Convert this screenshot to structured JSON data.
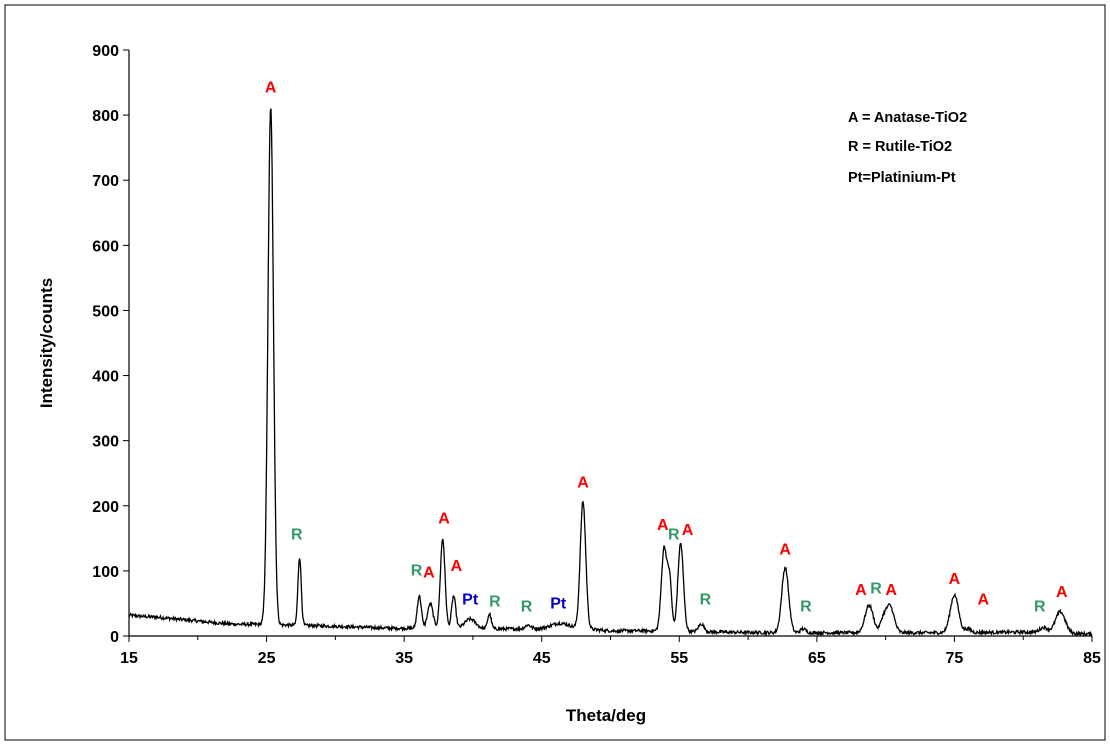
{
  "chart_data": {
    "type": "line",
    "xlabel": "Theta/deg",
    "ylabel": "Intensity/counts",
    "xlim": [
      15,
      85
    ],
    "ylim": [
      0,
      900
    ],
    "xticks": [
      15,
      25,
      35,
      45,
      55,
      65,
      75,
      85
    ],
    "yticks": [
      0,
      100,
      200,
      300,
      400,
      500,
      600,
      700,
      800,
      900
    ],
    "grid": false,
    "legend": [
      "A = Anatase-TiO2",
      "R = Rutile-TiO2",
      "Pt=Platinium-Pt"
    ],
    "legend_position": "top-right",
    "colors": {
      "A": "#ff0000",
      "R": "#339966",
      "Pt": "#0000cc",
      "line": "#000000"
    },
    "baseline": [
      [
        15,
        32
      ],
      [
        16,
        30
      ],
      [
        17,
        29
      ],
      [
        18,
        27
      ],
      [
        19,
        25
      ],
      [
        20,
        23
      ],
      [
        21,
        21
      ],
      [
        22,
        19
      ],
      [
        23,
        18
      ],
      [
        24,
        18
      ],
      [
        30,
        15
      ],
      [
        34,
        12
      ],
      [
        40,
        11
      ],
      [
        44,
        11
      ],
      [
        47,
        13
      ],
      [
        50,
        8
      ],
      [
        53,
        8
      ],
      [
        58,
        6
      ],
      [
        62,
        5
      ],
      [
        66,
        5
      ],
      [
        70,
        5
      ],
      [
        75,
        5
      ],
      [
        80,
        6
      ],
      [
        85,
        3
      ]
    ],
    "peaks": [
      {
        "center": 25.3,
        "height": 795,
        "width": 0.2
      },
      {
        "center": 27.4,
        "height": 105,
        "width": 0.12
      },
      {
        "center": 36.1,
        "height": 50,
        "width": 0.15
      },
      {
        "center": 36.9,
        "height": 38,
        "width": 0.2
      },
      {
        "center": 37.8,
        "height": 138,
        "width": 0.17
      },
      {
        "center": 38.6,
        "height": 50,
        "width": 0.15
      },
      {
        "center": 39.8,
        "height": 15,
        "width": 0.4
      },
      {
        "center": 41.2,
        "height": 23,
        "width": 0.13
      },
      {
        "center": 44.0,
        "height": 6,
        "width": 0.2
      },
      {
        "center": 46.3,
        "height": 7,
        "width": 0.6
      },
      {
        "center": 48.0,
        "height": 195,
        "width": 0.2
      },
      {
        "center": 53.9,
        "height": 128,
        "width": 0.2
      },
      {
        "center": 54.3,
        "height": 75,
        "width": 0.15
      },
      {
        "center": 55.1,
        "height": 135,
        "width": 0.2
      },
      {
        "center": 56.6,
        "height": 12,
        "width": 0.2
      },
      {
        "center": 62.7,
        "height": 100,
        "width": 0.25
      },
      {
        "center": 64.0,
        "height": 6,
        "width": 0.2
      },
      {
        "center": 68.8,
        "height": 42,
        "width": 0.3
      },
      {
        "center": 69.8,
        "height": 16,
        "width": 0.2
      },
      {
        "center": 70.3,
        "height": 42,
        "width": 0.3
      },
      {
        "center": 75.0,
        "height": 58,
        "width": 0.3
      },
      {
        "center": 76.0,
        "height": 6,
        "width": 0.2
      },
      {
        "center": 81.5,
        "height": 8,
        "width": 0.3
      },
      {
        "center": 82.7,
        "height": 33,
        "width": 0.35
      }
    ],
    "annotations": [
      {
        "text": "A",
        "x": 25.3,
        "y": 835,
        "phase": "A"
      },
      {
        "text": "R",
        "x": 27.2,
        "y": 148,
        "phase": "R"
      },
      {
        "text": "R",
        "x": 35.9,
        "y": 93,
        "phase": "R"
      },
      {
        "text": "A",
        "x": 36.8,
        "y": 90,
        "phase": "A"
      },
      {
        "text": "A",
        "x": 37.9,
        "y": 173,
        "phase": "A"
      },
      {
        "text": "A",
        "x": 38.8,
        "y": 100,
        "phase": "A"
      },
      {
        "text": "Pt",
        "x": 39.8,
        "y": 48,
        "phase": "Pt"
      },
      {
        "text": "R",
        "x": 41.6,
        "y": 45,
        "phase": "R"
      },
      {
        "text": "R",
        "x": 43.9,
        "y": 38,
        "phase": "R"
      },
      {
        "text": "Pt",
        "x": 46.2,
        "y": 42,
        "phase": "Pt"
      },
      {
        "text": "A",
        "x": 48.0,
        "y": 228,
        "phase": "A"
      },
      {
        "text": "A",
        "x": 53.8,
        "y": 163,
        "phase": "A"
      },
      {
        "text": "R",
        "x": 54.6,
        "y": 148,
        "phase": "R"
      },
      {
        "text": "A",
        "x": 55.6,
        "y": 155,
        "phase": "A"
      },
      {
        "text": "R",
        "x": 56.9,
        "y": 48,
        "phase": "R"
      },
      {
        "text": "A",
        "x": 62.7,
        "y": 125,
        "phase": "A"
      },
      {
        "text": "R",
        "x": 64.2,
        "y": 38,
        "phase": "R"
      },
      {
        "text": "A",
        "x": 68.2,
        "y": 63,
        "phase": "A"
      },
      {
        "text": "R",
        "x": 69.3,
        "y": 65,
        "phase": "R"
      },
      {
        "text": "A",
        "x": 70.4,
        "y": 63,
        "phase": "A"
      },
      {
        "text": "A",
        "x": 75.0,
        "y": 80,
        "phase": "A"
      },
      {
        "text": "A",
        "x": 77.1,
        "y": 48,
        "phase": "A"
      },
      {
        "text": "R",
        "x": 81.2,
        "y": 38,
        "phase": "R"
      },
      {
        "text": "A",
        "x": 82.8,
        "y": 60,
        "phase": "A"
      }
    ]
  }
}
